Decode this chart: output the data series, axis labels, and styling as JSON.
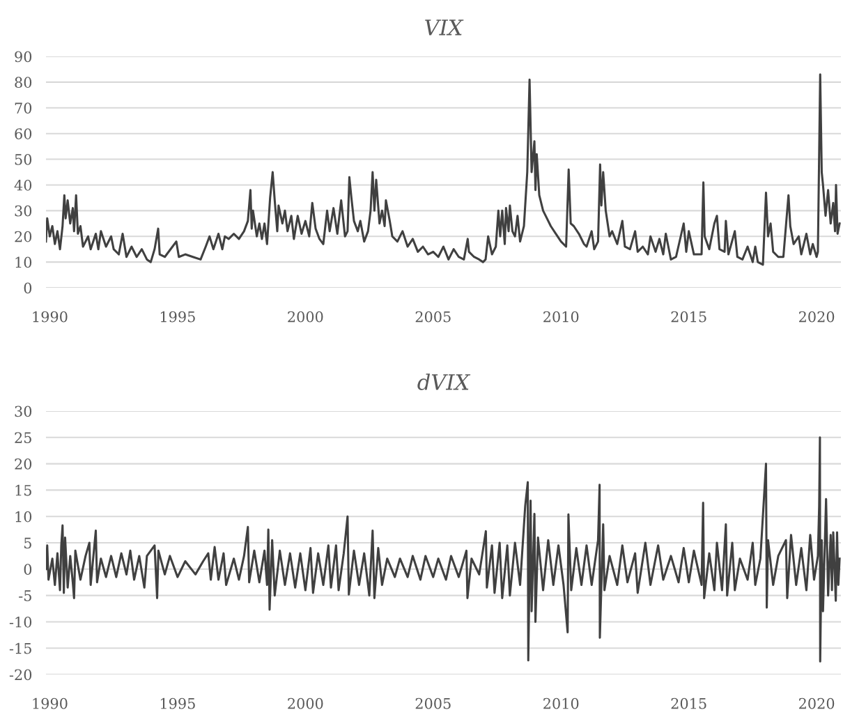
{
  "chart_data": [
    {
      "type": "line",
      "title": "VIX",
      "xlim": [
        1989.85,
        2020.95
      ],
      "xticks": [
        1990,
        1995,
        2000,
        2005,
        2010,
        2015,
        2020
      ],
      "ylim": [
        0,
        90
      ],
      "yticks": [
        0,
        10,
        20,
        30,
        40,
        50,
        60,
        70,
        80,
        90
      ],
      "grid": "y",
      "series": [
        {
          "color": "#404040",
          "x": [
            1989.85,
            1989.9,
            1990.0,
            1990.1,
            1990.2,
            1990.3,
            1990.4,
            1990.5,
            1990.57,
            1990.62,
            1990.7,
            1990.8,
            1990.9,
            1990.95,
            1991.03,
            1991.1,
            1991.2,
            1991.3,
            1991.5,
            1991.6,
            1991.8,
            1991.9,
            1992.0,
            1992.2,
            1992.4,
            1992.5,
            1992.7,
            1992.85,
            1993.0,
            1993.2,
            1993.4,
            1993.6,
            1993.8,
            1993.95,
            1994.1,
            1994.24,
            1994.3,
            1994.5,
            1994.8,
            1994.95,
            1995.05,
            1995.3,
            1995.6,
            1995.9,
            1996.1,
            1996.25,
            1996.4,
            1996.6,
            1996.75,
            1996.85,
            1997.0,
            1997.2,
            1997.4,
            1997.6,
            1997.75,
            1997.85,
            1997.9,
            1997.95,
            1998.1,
            1998.2,
            1998.3,
            1998.4,
            1998.5,
            1998.62,
            1998.72,
            1998.8,
            1998.9,
            1998.95,
            1999.1,
            1999.2,
            1999.3,
            1999.45,
            1999.55,
            1999.7,
            1999.85,
            2000.0,
            2000.15,
            2000.27,
            2000.4,
            2000.55,
            2000.7,
            2000.85,
            2000.95,
            2001.1,
            2001.25,
            2001.4,
            2001.55,
            2001.65,
            2001.72,
            2001.8,
            2001.9,
            2002.05,
            2002.15,
            2002.3,
            2002.45,
            2002.55,
            2002.63,
            2002.7,
            2002.77,
            2002.9,
            2003.0,
            2003.1,
            2003.15,
            2003.3,
            2003.4,
            2003.6,
            2003.8,
            2004.0,
            2004.2,
            2004.4,
            2004.6,
            2004.8,
            2005.0,
            2005.2,
            2005.4,
            2005.6,
            2005.8,
            2006.0,
            2006.2,
            2006.35,
            2006.4,
            2006.6,
            2006.8,
            2006.95,
            2007.05,
            2007.15,
            2007.3,
            2007.45,
            2007.55,
            2007.62,
            2007.7,
            2007.8,
            2007.85,
            2007.95,
            2008.0,
            2008.1,
            2008.2,
            2008.3,
            2008.4,
            2008.55,
            2008.68,
            2008.77,
            2008.85,
            2008.96,
            2009.0,
            2009.05,
            2009.15,
            2009.3,
            2009.45,
            2009.6,
            2009.8,
            2010.0,
            2010.2,
            2010.3,
            2010.38,
            2010.5,
            2010.7,
            2010.9,
            2011.0,
            2011.2,
            2011.3,
            2011.45,
            2011.53,
            2011.58,
            2011.65,
            2011.75,
            2011.9,
            2012.0,
            2012.2,
            2012.4,
            2012.5,
            2012.7,
            2012.9,
            2013.0,
            2013.2,
            2013.4,
            2013.5,
            2013.7,
            2013.85,
            2014.0,
            2014.1,
            2014.3,
            2014.5,
            2014.8,
            2014.9,
            2015.0,
            2015.2,
            2015.5,
            2015.57,
            2015.62,
            2015.8,
            2016.0,
            2016.1,
            2016.2,
            2016.4,
            2016.45,
            2016.55,
            2016.8,
            2016.9,
            2017.1,
            2017.3,
            2017.5,
            2017.6,
            2017.7,
            2017.9,
            2018.02,
            2018.1,
            2018.2,
            2018.3,
            2018.5,
            2018.7,
            2018.8,
            2018.9,
            2018.97,
            2019.1,
            2019.3,
            2019.4,
            2019.6,
            2019.75,
            2019.85,
            2020.0,
            2020.05,
            2020.14,
            2020.2,
            2020.25,
            2020.35,
            2020.45,
            2020.55,
            2020.65,
            2020.72,
            2020.76,
            2020.82,
            2020.9
          ],
          "values": [
            18,
            27,
            20,
            24,
            17,
            22,
            15,
            24,
            36,
            27,
            34,
            25,
            31,
            22,
            36,
            21,
            24,
            16,
            20,
            15,
            21,
            15,
            22,
            16,
            20,
            15,
            13,
            21,
            12,
            16,
            12,
            15,
            11,
            10,
            15,
            23,
            13,
            12,
            16,
            18,
            12,
            13,
            12,
            11,
            16,
            20,
            15,
            21,
            15,
            20,
            19,
            21,
            19,
            22,
            26,
            38,
            23,
            30,
            20,
            25,
            19,
            25,
            17,
            35,
            45,
            34,
            22,
            32,
            25,
            30,
            22,
            28,
            19,
            28,
            21,
            26,
            20,
            33,
            23,
            19,
            17,
            30,
            22,
            31,
            21,
            34,
            20,
            22,
            43,
            35,
            26,
            22,
            26,
            18,
            22,
            30,
            45,
            30,
            42,
            25,
            30,
            24,
            34,
            26,
            20,
            18,
            22,
            16,
            19,
            14,
            16,
            13,
            14,
            12,
            16,
            11,
            15,
            12,
            11,
            19,
            14,
            12,
            11,
            10,
            11,
            20,
            13,
            16,
            30,
            20,
            30,
            17,
            31,
            22,
            32,
            22,
            20,
            28,
            18,
            24,
            45,
            81,
            45,
            57,
            38,
            52,
            36,
            30,
            27,
            24,
            21,
            18,
            16,
            46,
            25,
            24,
            21,
            17,
            16,
            22,
            15,
            18,
            48,
            32,
            45,
            30,
            20,
            22,
            17,
            26,
            16,
            15,
            22,
            14,
            16,
            13,
            20,
            14,
            19,
            13,
            21,
            11,
            12,
            25,
            14,
            22,
            13,
            13,
            41,
            20,
            15,
            25,
            28,
            15,
            14,
            26,
            13,
            22,
            12,
            11,
            16,
            10,
            16,
            10,
            9,
            37,
            20,
            25,
            14,
            12,
            12,
            24,
            36,
            24,
            17,
            20,
            13,
            21,
            13,
            17,
            12,
            14,
            83,
            45,
            40,
            28,
            38,
            25,
            33,
            22,
            40,
            21,
            25
          ]
        }
      ]
    },
    {
      "type": "line",
      "title": "dVIX",
      "xlim": [
        1989.85,
        2020.95
      ],
      "xticks": [
        1990,
        1995,
        2000,
        2005,
        2010,
        2015,
        2020
      ],
      "ylim": [
        -20,
        30
      ],
      "yticks": [
        -20,
        -15,
        -10,
        -5,
        0,
        5,
        10,
        15,
        20,
        25,
        30
      ],
      "grid": "y",
      "series": [
        {
          "color": "#404040",
          "x": [
            1989.85,
            1989.9,
            1989.95,
            1990.1,
            1990.2,
            1990.3,
            1990.4,
            1990.45,
            1990.5,
            1990.55,
            1990.6,
            1990.7,
            1990.8,
            1990.9,
            1990.95,
            1991.0,
            1991.2,
            1991.4,
            1991.55,
            1991.6,
            1991.8,
            1991.85,
            1992.0,
            1992.2,
            1992.4,
            1992.6,
            1992.8,
            1993.0,
            1993.15,
            1993.3,
            1993.5,
            1993.7,
            1993.8,
            1994.1,
            1994.2,
            1994.25,
            1994.5,
            1994.7,
            1995.0,
            1995.3,
            1995.7,
            1996.0,
            1996.2,
            1996.3,
            1996.45,
            1996.6,
            1996.8,
            1996.9,
            1997.2,
            1997.4,
            1997.6,
            1997.75,
            1997.8,
            1998.0,
            1998.2,
            1998.4,
            1998.5,
            1998.55,
            1998.6,
            1998.7,
            1998.8,
            1999.0,
            1999.2,
            1999.4,
            1999.6,
            1999.8,
            2000.0,
            2000.2,
            2000.3,
            2000.5,
            2000.7,
            2000.9,
            2001.0,
            2001.2,
            2001.3,
            2001.5,
            2001.65,
            2001.7,
            2001.9,
            2002.1,
            2002.3,
            2002.5,
            2002.63,
            2002.7,
            2002.85,
            2003.0,
            2003.2,
            2003.5,
            2003.7,
            2004.0,
            2004.2,
            2004.5,
            2004.7,
            2005.0,
            2005.2,
            2005.5,
            2005.7,
            2006.0,
            2006.3,
            2006.34,
            2006.5,
            2006.8,
            2007.06,
            2007.1,
            2007.3,
            2007.4,
            2007.6,
            2007.7,
            2007.9,
            2008.0,
            2008.2,
            2008.4,
            2008.6,
            2008.7,
            2008.72,
            2008.81,
            2008.85,
            2008.96,
            2009.0,
            2009.1,
            2009.3,
            2009.5,
            2009.7,
            2009.9,
            2010.1,
            2010.26,
            2010.29,
            2010.4,
            2010.6,
            2010.8,
            2011.0,
            2011.2,
            2011.45,
            2011.51,
            2011.52,
            2011.65,
            2011.7,
            2011.9,
            2012.2,
            2012.4,
            2012.6,
            2012.9,
            2013.0,
            2013.3,
            2013.5,
            2013.8,
            2014.0,
            2014.3,
            2014.6,
            2014.8,
            2015.0,
            2015.2,
            2015.5,
            2015.56,
            2015.6,
            2015.8,
            2016.0,
            2016.1,
            2016.3,
            2016.45,
            2016.5,
            2016.7,
            2016.8,
            2017.0,
            2017.3,
            2017.5,
            2017.6,
            2017.8,
            2018.02,
            2018.05,
            2018.1,
            2018.3,
            2018.5,
            2018.8,
            2018.85,
            2019.0,
            2019.2,
            2019.4,
            2019.6,
            2019.75,
            2019.9,
            2020.05,
            2020.1,
            2020.13,
            2020.14,
            2020.2,
            2020.25,
            2020.37,
            2020.45,
            2020.55,
            2020.6,
            2020.65,
            2020.75,
            2020.8,
            2020.85,
            2020.9
          ],
          "values": [
            0,
            4.5,
            -2,
            2,
            -3,
            3,
            -4,
            4.5,
            8.3,
            -4.5,
            6,
            -3.5,
            2.5,
            -2.5,
            -5.5,
            3.5,
            -2,
            2.5,
            5,
            -3,
            7.3,
            -2.5,
            2,
            -1.5,
            2.5,
            -1.5,
            3,
            -1,
            3.5,
            -2,
            2.5,
            -3.5,
            2.5,
            4.5,
            -5.5,
            3.5,
            -1,
            2.5,
            -1.5,
            1.5,
            -1,
            1.5,
            3,
            -2,
            4.2,
            -2,
            3,
            -3,
            2,
            -2,
            2.5,
            8,
            -2.5,
            3.5,
            -2.5,
            3.5,
            -3,
            7.5,
            -7.7,
            5.5,
            -5,
            3.5,
            -3,
            3,
            -3.5,
            3,
            -4,
            4,
            -4.5,
            3,
            -3,
            4.5,
            -3.5,
            4.5,
            -4,
            3,
            10,
            -4.8,
            3.5,
            -3,
            3,
            -5,
            7.3,
            -5.5,
            4,
            -3,
            2,
            -1.5,
            2,
            -1.5,
            2.5,
            -2,
            2.5,
            -1.5,
            2,
            -2,
            2.5,
            -1.5,
            3.5,
            -5.5,
            2,
            -1,
            7.2,
            -3.5,
            4.5,
            -4.5,
            5,
            -5.5,
            4.5,
            -5,
            5,
            -3,
            12,
            16.5,
            -17.3,
            13,
            -8,
            10.5,
            -10,
            6,
            -4,
            5.5,
            -3,
            4.5,
            -3,
            -12,
            10.4,
            -4,
            4,
            -3,
            4.5,
            -3,
            5.5,
            16,
            -13,
            8.5,
            -4,
            2.5,
            -3,
            4.5,
            -2.5,
            3,
            -4.5,
            5,
            -3,
            4.5,
            -2,
            2.5,
            -2.5,
            4,
            -2.5,
            3.5,
            -3,
            12.6,
            -5.5,
            3,
            -4,
            5,
            -4,
            8.5,
            -5,
            5,
            -4,
            2,
            -2,
            5,
            -3,
            2,
            20,
            -7.3,
            5.5,
            -3,
            2.5,
            5.5,
            -5.5,
            6.5,
            -3,
            4,
            -4,
            6.5,
            -2,
            2.5,
            12,
            25,
            -17.5,
            5.5,
            -8,
            13.3,
            -5,
            6.5,
            -4,
            7,
            -6,
            7,
            -3,
            2
          ]
        }
      ]
    }
  ]
}
